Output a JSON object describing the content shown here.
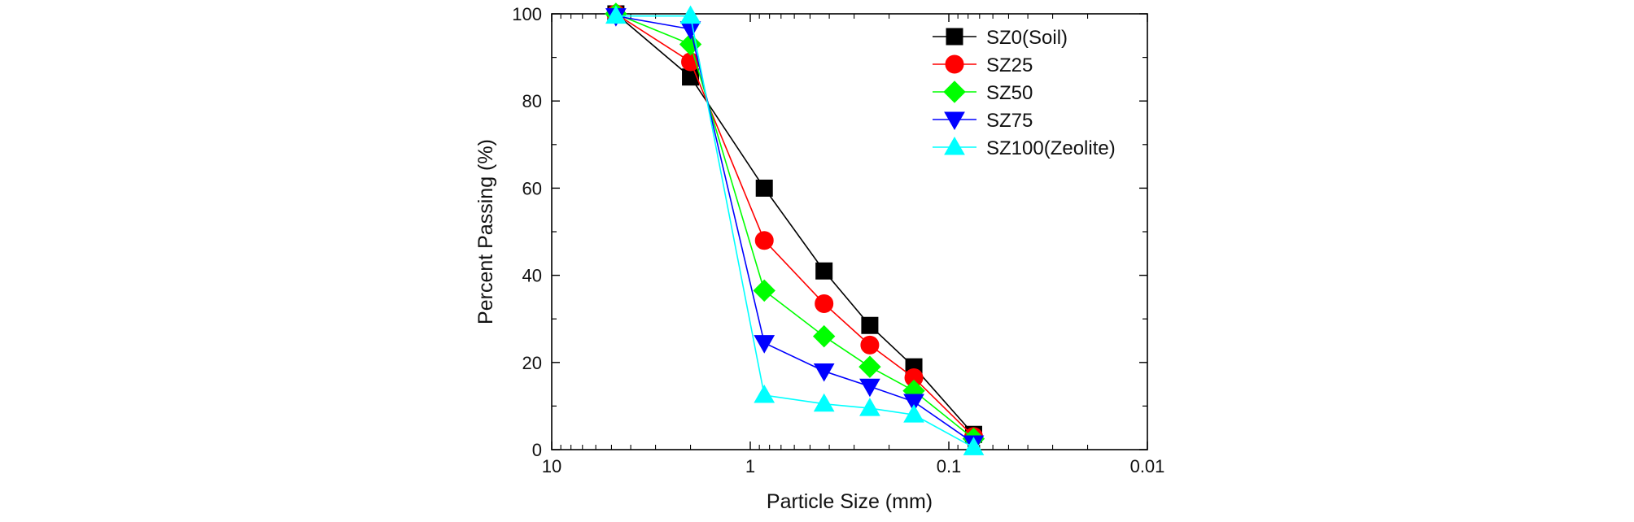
{
  "chart_data": {
    "type": "line",
    "title": "",
    "xlabel": "Particle Size (mm)",
    "ylabel": "Percent Passing (%)",
    "x_scale": "log",
    "x_reversed": true,
    "xlim": [
      10,
      0.01
    ],
    "ylim": [
      0,
      100
    ],
    "x_tick_labels": [
      "10",
      "1",
      "0.1",
      "0.01"
    ],
    "y_tick_labels": [
      "0",
      "20",
      "40",
      "60",
      "80",
      "100"
    ],
    "grid": false,
    "legend_position": "top-right",
    "x": [
      4.75,
      2.0,
      0.85,
      0.425,
      0.25,
      0.15,
      0.075
    ],
    "series": [
      {
        "name": "SZ0(Soil)",
        "color": "#000000",
        "marker": "square",
        "values": [
          100,
          85.5,
          60,
          41,
          28.5,
          19,
          3.5
        ]
      },
      {
        "name": "SZ25",
        "color": "#ff0000",
        "marker": "circle",
        "values": [
          100,
          89,
          48,
          33.5,
          24,
          16.5,
          3
        ]
      },
      {
        "name": "SZ50",
        "color": "#00ff00",
        "marker": "diamond",
        "values": [
          100,
          93,
          36.5,
          26,
          19,
          13.5,
          2.5
        ]
      },
      {
        "name": "SZ75",
        "color": "#0000ff",
        "marker": "triangle-down",
        "values": [
          99.5,
          96.5,
          24.5,
          18,
          14.5,
          11,
          1.5
        ]
      },
      {
        "name": "SZ100(Zeolite)",
        "color": "#00ffff",
        "marker": "triangle-up",
        "values": [
          99.5,
          99.5,
          12.5,
          10.5,
          9.5,
          8,
          0.5
        ]
      }
    ]
  }
}
